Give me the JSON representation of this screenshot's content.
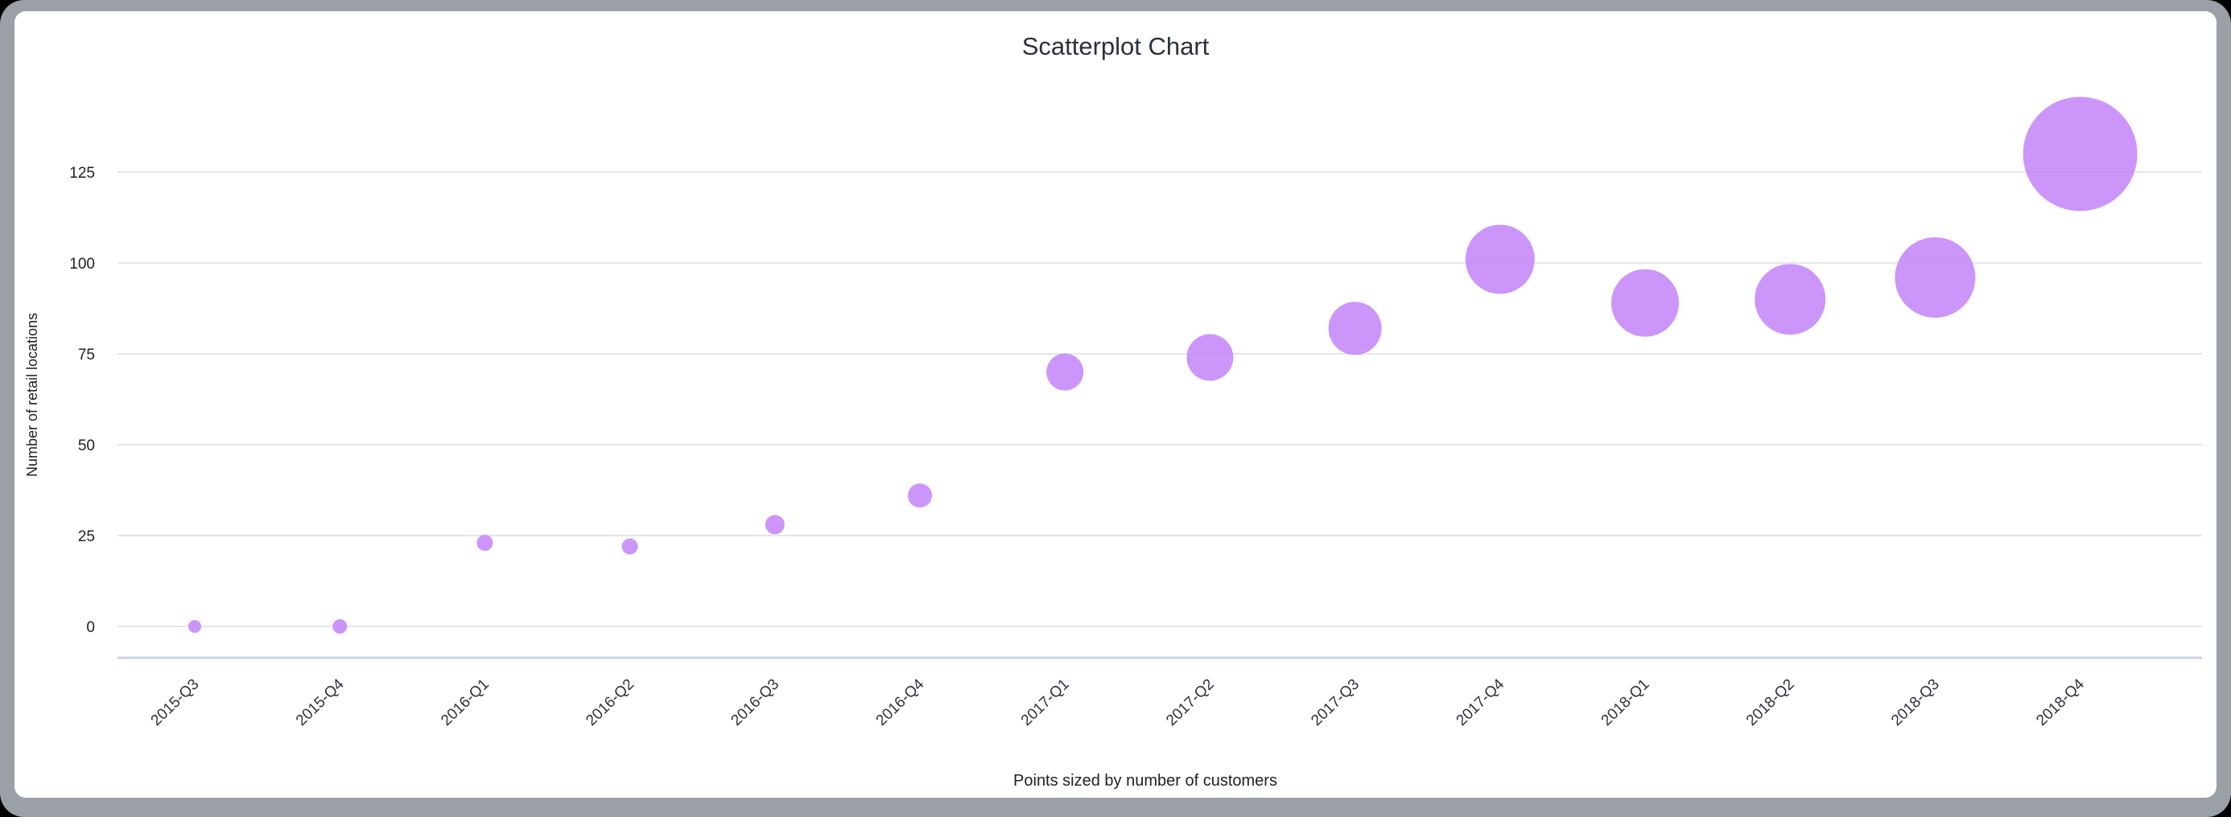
{
  "window": {
    "outer_background": "#000000",
    "frame_color": "#9aa0a6",
    "card_background": "#ffffff"
  },
  "colors": {
    "point": "#c58af9",
    "gridline": "#e4e6e9",
    "axis_baseline": "#ccd6e8",
    "tick_text": "#202124",
    "title_text": "#29323b"
  },
  "chart_data": {
    "type": "scatter",
    "title": "Scatterplot Chart",
    "xlabel": "Points sized by number of customers",
    "ylabel": "Number of retail locations",
    "categories": [
      "2015-Q3",
      "2015-Q4",
      "2016-Q1",
      "2016-Q2",
      "2016-Q3",
      "2016-Q4",
      "2017-Q1",
      "2017-Q2",
      "2017-Q3",
      "2017-Q4",
      "2018-Q1",
      "2018-Q2",
      "2018-Q3",
      "2018-Q4"
    ],
    "series": [
      {
        "name": "Number of retail locations",
        "values": [
          0,
          0,
          23,
          22,
          28,
          36,
          70,
          74,
          82,
          101,
          89,
          90,
          96,
          130
        ],
        "point_radius_px": [
          8,
          9,
          10,
          10,
          12,
          15,
          23,
          29,
          33,
          43,
          42,
          44,
          50,
          71
        ]
      }
    ],
    "yticks": [
      0,
      25,
      50,
      75,
      100,
      125
    ],
    "ylim": [
      0,
      145
    ],
    "grid": true,
    "legend": "none",
    "points_sized_by": "number of customers"
  }
}
